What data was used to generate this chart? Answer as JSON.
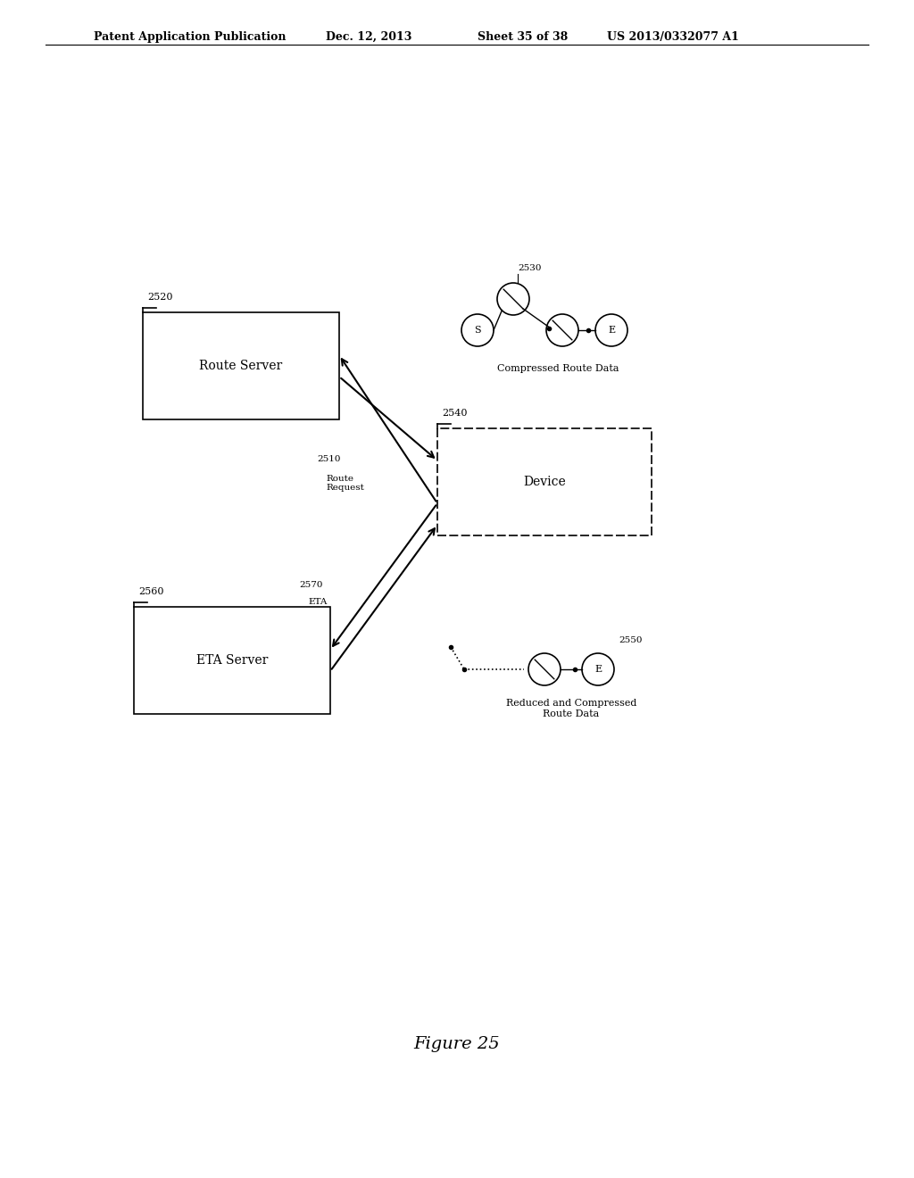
{
  "bg_color": "#ffffff",
  "header_text": "Patent Application Publication",
  "header_date": "Dec. 12, 2013",
  "header_sheet": "Sheet 35 of 38",
  "header_patent": "US 2013/0332077 A1",
  "figure_label": "Figure 25",
  "route_server_label": "Route Server",
  "route_server_id": "2520",
  "device_label": "Device",
  "device_id": "2540",
  "eta_server_label": "ETA Server",
  "eta_server_id": "2560",
  "compressed_route_id": "2530",
  "compressed_route_label": "Compressed Route Data",
  "reduced_route_id": "2550",
  "reduced_route_label": "Reduced and Compressed\nRoute Data",
  "route_request_id": "2510",
  "route_request_label": "Route\nRequest",
  "eta_id": "2570",
  "eta_label": "ETA"
}
